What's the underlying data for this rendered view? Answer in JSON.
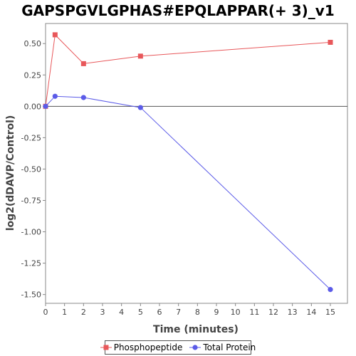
{
  "chart_data": {
    "type": "line",
    "title": "GAPSPGVLGPHAS#EPQLAPPAR(+ 3)_v1",
    "xlabel": "Time (minutes)",
    "ylabel": "log2(dDAVP/Control)",
    "xlim": [
      0,
      15.9
    ],
    "ylim": [
      -1.57,
      0.66
    ],
    "x_ticks": [
      0,
      1,
      2,
      3,
      4,
      5,
      6,
      7,
      8,
      9,
      10,
      11,
      12,
      13,
      14,
      15
    ],
    "y_ticks": [
      -1.5,
      -1.25,
      -1.0,
      -0.75,
      -0.5,
      -0.25,
      0.0,
      0.25,
      0.5
    ],
    "y_tick_labels": [
      "-1.50",
      "-1.25",
      "-1.00",
      "-0.75",
      "-0.50",
      "-0.25",
      "0.00",
      "0.25",
      "0.50"
    ],
    "zero_line": true,
    "grid": false,
    "legend_position": "bottom",
    "series": [
      {
        "name": "Phosphopeptide",
        "color": "#e8575a",
        "marker": "square",
        "x": [
          0,
          0.5,
          2,
          5,
          15
        ],
        "y": [
          0.0,
          0.57,
          0.34,
          0.4,
          0.51
        ]
      },
      {
        "name": "Total Protein",
        "color": "#5b5be8",
        "marker": "circle",
        "x": [
          0,
          0.5,
          2,
          5,
          15
        ],
        "y": [
          0.0,
          0.08,
          0.07,
          -0.01,
          -1.46
        ]
      }
    ]
  }
}
